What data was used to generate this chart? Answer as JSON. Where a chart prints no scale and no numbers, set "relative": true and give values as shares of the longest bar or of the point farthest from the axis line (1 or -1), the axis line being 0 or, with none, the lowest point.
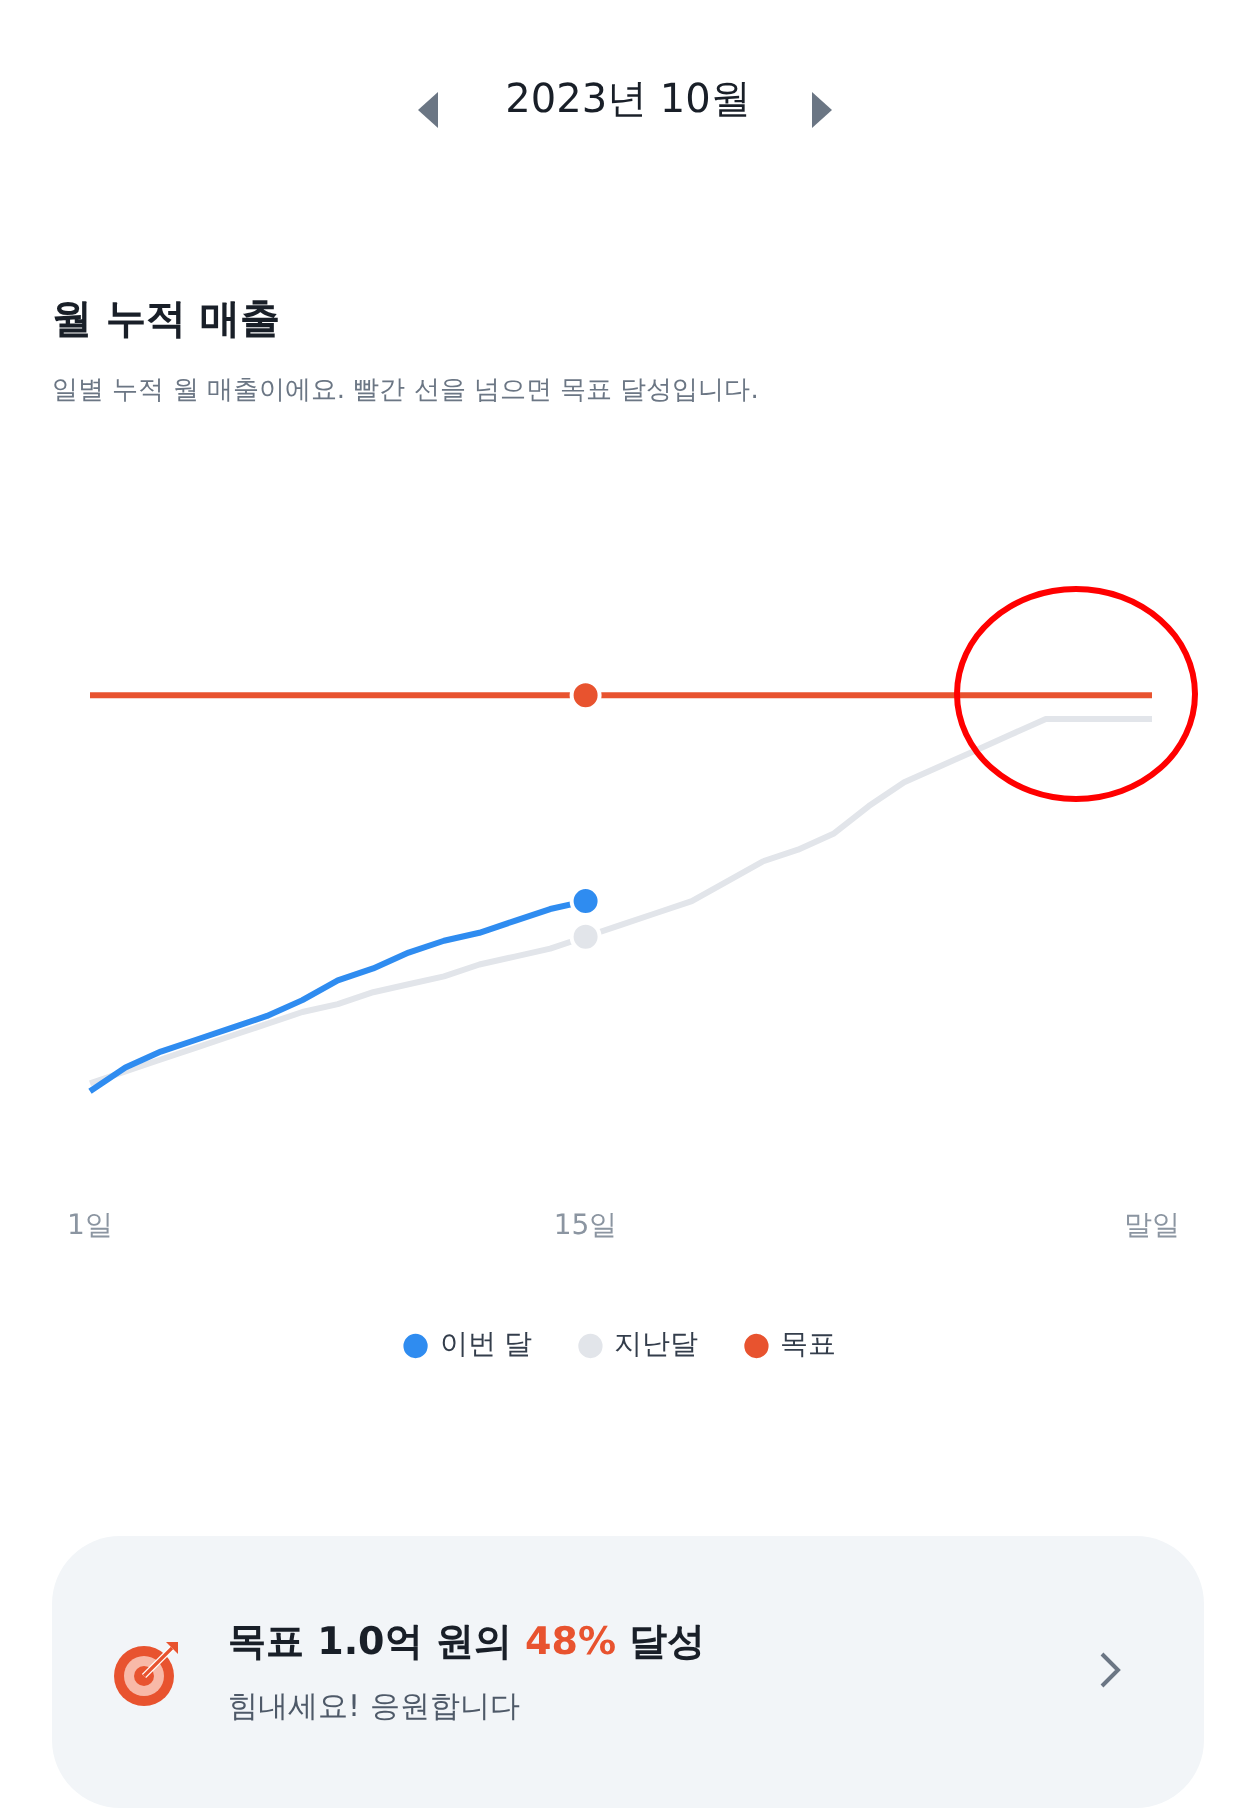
{
  "chart_data": {
    "type": "line",
    "title": "월 누적 매출",
    "subtitle": "일별 누적 월 매출이에요. 빨간 선을 넘으면 목표 달성입니다.",
    "annotations": [
      "2023년 10월",
      "목표 1.0억 원의 48% 달성",
      "힘내세요! 응원합니다"
    ],
    "relative": true,
    "grid": false,
    "legend": "bottom",
    "line_style": "solid",
    "categories": [
      "1일",
      null,
      null,
      null,
      null,
      null,
      null,
      null,
      null,
      null,
      null,
      null,
      null,
      null,
      "15일",
      null,
      null,
      null,
      null,
      null,
      null,
      null,
      null,
      null,
      null,
      null,
      null,
      null,
      null,
      null,
      "말일"
    ],
    "series": [
      {
        "name": "이번 달",
        "color": "#2f8cf0",
        "values": [
          0,
          0.06,
          0.1,
          0.13,
          0.16,
          0.19,
          0.23,
          0.28,
          0.31,
          0.35,
          0.38,
          0.4,
          0.43,
          0.46,
          0.48,
          null,
          null,
          null,
          null,
          null,
          null,
          null,
          null,
          null,
          null,
          null,
          null,
          null,
          null,
          null,
          null
        ]
      },
      {
        "name": "지난달",
        "color": "#e2e5ea",
        "values": [
          0.02,
          0.05,
          0.08,
          0.11,
          0.14,
          0.17,
          0.2,
          0.22,
          0.25,
          0.27,
          0.29,
          0.32,
          0.34,
          0.36,
          0.39,
          0.42,
          0.45,
          0.48,
          0.53,
          0.58,
          0.61,
          0.65,
          0.72,
          0.78,
          0.82,
          0.86,
          0.9,
          0.94,
          0.94,
          0.94,
          0.94
        ]
      },
      {
        "name": "목표",
        "color": "#e8532f",
        "values": [
          1,
          1,
          1,
          1,
          1,
          1,
          1,
          1,
          1,
          1,
          1,
          1,
          1,
          1,
          1,
          1,
          1,
          1,
          1,
          1,
          1,
          1,
          1,
          1,
          1,
          1,
          1,
          1,
          1,
          1,
          1
        ]
      }
    ]
  }
}
